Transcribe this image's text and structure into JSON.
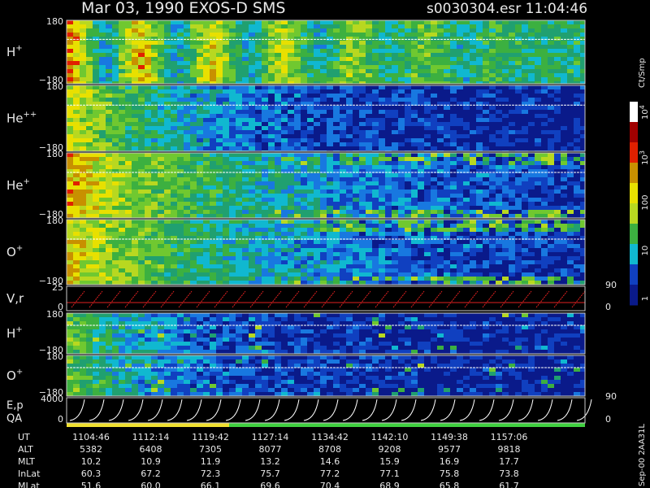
{
  "header": {
    "title": "Mar 03, 1990   EXOS-D SMS",
    "file": "s0030304.esr  11:04:46"
  },
  "panels": [
    {
      "label": "H",
      "sup": "+",
      "top": "180",
      "bottom": "−180"
    },
    {
      "label": "He",
      "sup": "++",
      "top": "180",
      "bottom": "−180"
    },
    {
      "label": "He",
      "sup": "+",
      "top": "180",
      "bottom": "−180"
    },
    {
      "label": "O",
      "sup": "+",
      "top": "180",
      "bottom": "−180"
    },
    {
      "label": "V,r",
      "top": "25",
      "bottom": "0",
      "right_top": "90",
      "right_bottom": "0"
    },
    {
      "label": "H",
      "sup": "+",
      "top": "180",
      "bottom": "−180"
    },
    {
      "label": "O",
      "sup": "+",
      "top": "180",
      "bottom": "−180"
    },
    {
      "label": "E,p",
      "label2": "QA",
      "top": "4000",
      "bottom": "0",
      "right_top": "90",
      "right_bottom": "0"
    }
  ],
  "colorbar": {
    "unit": "Ct/Smp",
    "ticks": [
      {
        "text": "10",
        "sup": "4"
      },
      {
        "text": "10",
        "sup": "3"
      },
      {
        "text": "100"
      },
      {
        "text": "10"
      },
      {
        "text": "1"
      }
    ]
  },
  "table": {
    "rows": [
      {
        "label": "UT",
        "values": [
          "1104:46",
          "1112:14",
          "1119:42",
          "1127:14",
          "1134:42",
          "1142:10",
          "1149:38",
          "1157:06"
        ]
      },
      {
        "label": "ALT",
        "values": [
          "5382",
          "6408",
          "7305",
          "8077",
          "8708",
          "9208",
          "9577",
          "9818"
        ]
      },
      {
        "label": "MLT",
        "values": [
          "10.2",
          "10.9",
          "11.9",
          "13.2",
          "14.6",
          "15.9",
          "16.9",
          "17.7"
        ]
      },
      {
        "label": "InLat",
        "values": [
          "60.3",
          "67.2",
          "72.3",
          "75.7",
          "77.2",
          "77.1",
          "75.8",
          "73.8"
        ]
      },
      {
        "label": "MLat",
        "values": [
          "51.6",
          "60.0",
          "66.1",
          "69.6",
          "70.4",
          "68.9",
          "65.8",
          "61.7"
        ]
      }
    ]
  },
  "footer": "Sep-00  2AA31L"
}
